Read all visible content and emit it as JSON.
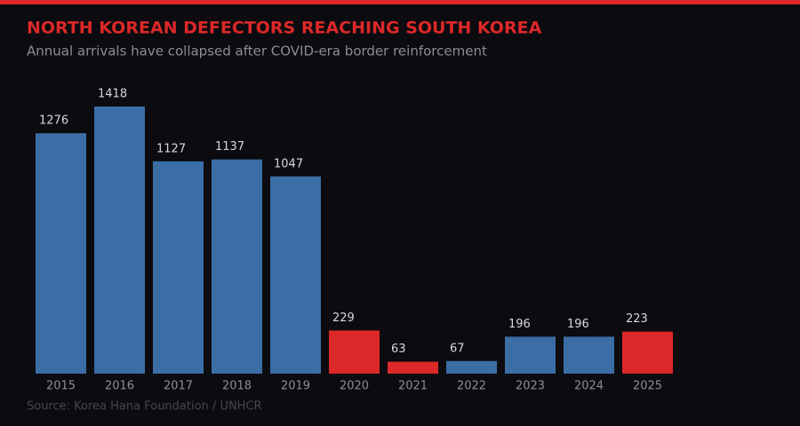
{
  "chart_data": {
    "type": "bar",
    "title": "NORTH KOREAN DEFECTORS REACHING SOUTH KOREA",
    "subtitle": "Annual arrivals have collapsed after COVID-era border reinforcement",
    "source": "Source: Korea Hana Foundation / UNHCR",
    "categories": [
      "2015",
      "2016",
      "2017",
      "2018",
      "2019",
      "2020",
      "2021",
      "2022",
      "2023",
      "2024",
      "2025"
    ],
    "values": [
      1276,
      1418,
      1127,
      1137,
      1047,
      229,
      63,
      67,
      196,
      196,
      223
    ],
    "colors": [
      "#3b6ea5",
      "#3b6ea5",
      "#3b6ea5",
      "#3b6ea5",
      "#3b6ea5",
      "#dc2828",
      "#dc2828",
      "#3b6ea5",
      "#3b6ea5",
      "#3b6ea5",
      "#dc2828"
    ]
  }
}
